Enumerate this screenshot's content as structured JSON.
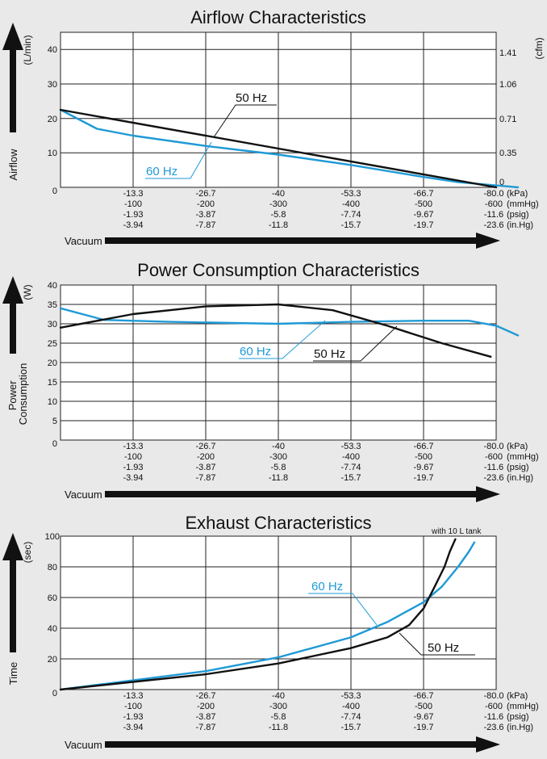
{
  "colors": {
    "s50": "#111111",
    "s60": "#1f9ad6",
    "bg": "#e9e9e9",
    "plot": "#ffffff",
    "grid": "#222222"
  },
  "vacuum_label": "Vacuum",
  "vacuum_ticks": {
    "kPa": [
      "-13.3",
      "-26.7",
      "-40",
      "-53.3",
      "-66.7",
      "-80.0"
    ],
    "mmHg": [
      "-100",
      "-200",
      "-300",
      "-400",
      "-500",
      "-600"
    ],
    "psig": [
      "-1.93",
      "-3.87",
      "-5.8",
      "-7.74",
      "-9.67",
      "-11.6"
    ],
    "inHg": [
      "-3.94",
      "-7.87",
      "-11.8",
      "-15.7",
      "-19.7",
      "-23.6"
    ],
    "unit_labels": [
      "(kPa)",
      "(mmHg)",
      "(psig)",
      "(in.Hg)"
    ]
  },
  "chart_data": [
    {
      "type": "line",
      "title": "Airflow Characteristics",
      "ylabel": "Airflow",
      "yunit": "(L/min)",
      "y2unit": "(cfm)",
      "xlabel": "Vacuum",
      "xlim": [
        0,
        -80
      ],
      "ylim": [
        0,
        45
      ],
      "yticks": [
        0,
        10,
        20,
        30,
        40
      ],
      "y2ticks": [
        {
          "label": "0",
          "at": 0
        },
        {
          "label": "0.35",
          "at": 10
        },
        {
          "label": "0.71",
          "at": 20
        },
        {
          "label": "1.06",
          "at": 30
        },
        {
          "label": "1.41",
          "at": 40
        }
      ],
      "series": [
        {
          "name": "50 Hz",
          "points": [
            [
              0,
              22.5
            ],
            [
              -80,
              0
            ]
          ]
        },
        {
          "name": "60 Hz",
          "points": [
            [
              0,
              22.5
            ],
            [
              -6.7,
              17
            ],
            [
              -13.3,
              15
            ],
            [
              -26.7,
              12
            ],
            [
              -40,
              9.5
            ],
            [
              -53.3,
              6.5
            ],
            [
              -66.7,
              3
            ],
            [
              -73,
              1.5
            ],
            [
              -84,
              0
            ]
          ]
        }
      ],
      "annotations": [
        {
          "text": "50 Hz",
          "series": "50 Hz"
        },
        {
          "text": "60 Hz",
          "series": "60 Hz"
        }
      ]
    },
    {
      "type": "line",
      "title": "Power Consumption  Characteristics",
      "ylabel": "Power Consumption",
      "yunit": "(W)",
      "xlabel": "Vacuum",
      "xlim": [
        0,
        -80
      ],
      "ylim": [
        0,
        40
      ],
      "yticks": [
        0,
        5,
        10,
        15,
        20,
        25,
        30,
        35,
        40
      ],
      "series": [
        {
          "name": "50 Hz",
          "points": [
            [
              0,
              29
            ],
            [
              -13.3,
              32.5
            ],
            [
              -26.7,
              34.5
            ],
            [
              -40,
              35
            ],
            [
              -50,
              33.5
            ],
            [
              -60,
              29.5
            ],
            [
              -70,
              25
            ],
            [
              -79,
              21.5
            ]
          ]
        },
        {
          "name": "60 Hz",
          "points": [
            [
              0,
              34
            ],
            [
              -8,
              31
            ],
            [
              -20,
              30.5
            ],
            [
              -40,
              30
            ],
            [
              -53.3,
              30.5
            ],
            [
              -66.7,
              30.8
            ],
            [
              -75,
              30.8
            ],
            [
              -80,
              29.5
            ],
            [
              -84,
              27
            ]
          ]
        }
      ],
      "annotations": [
        {
          "text": "60 Hz",
          "series": "60 Hz"
        },
        {
          "text": "50 Hz",
          "series": "50 Hz"
        }
      ]
    },
    {
      "type": "line",
      "title": "Exhaust Characteristics",
      "subtitle": "with 10 L tank",
      "ylabel": "Time",
      "yunit": "(sec)",
      "xlabel": "Vacuum",
      "xlim": [
        0,
        -80
      ],
      "ylim": [
        0,
        100
      ],
      "yticks": [
        0,
        20,
        40,
        60,
        80,
        100
      ],
      "series": [
        {
          "name": "50 Hz",
          "points": [
            [
              0,
              0
            ],
            [
              -13.3,
              5
            ],
            [
              -26.7,
              10
            ],
            [
              -40,
              17
            ],
            [
              -53.3,
              27
            ],
            [
              -60,
              34
            ],
            [
              -64,
              42
            ],
            [
              -66.7,
              53
            ],
            [
              -68.7,
              67
            ],
            [
              -70.5,
              80
            ],
            [
              -71.5,
              90
            ],
            [
              -72.5,
              98
            ]
          ]
        },
        {
          "name": "60 Hz",
          "points": [
            [
              0,
              0
            ],
            [
              -13.3,
              6
            ],
            [
              -26.7,
              12
            ],
            [
              -40,
              21
            ],
            [
              -53.3,
              34
            ],
            [
              -60,
              44
            ],
            [
              -66.7,
              57
            ],
            [
              -70,
              67
            ],
            [
              -73,
              80
            ],
            [
              -75,
              90
            ],
            [
              -76,
              96
            ]
          ]
        }
      ],
      "annotations": [
        {
          "text": "60 Hz",
          "series": "60 Hz"
        },
        {
          "text": "50 Hz",
          "series": "50 Hz"
        }
      ]
    }
  ]
}
